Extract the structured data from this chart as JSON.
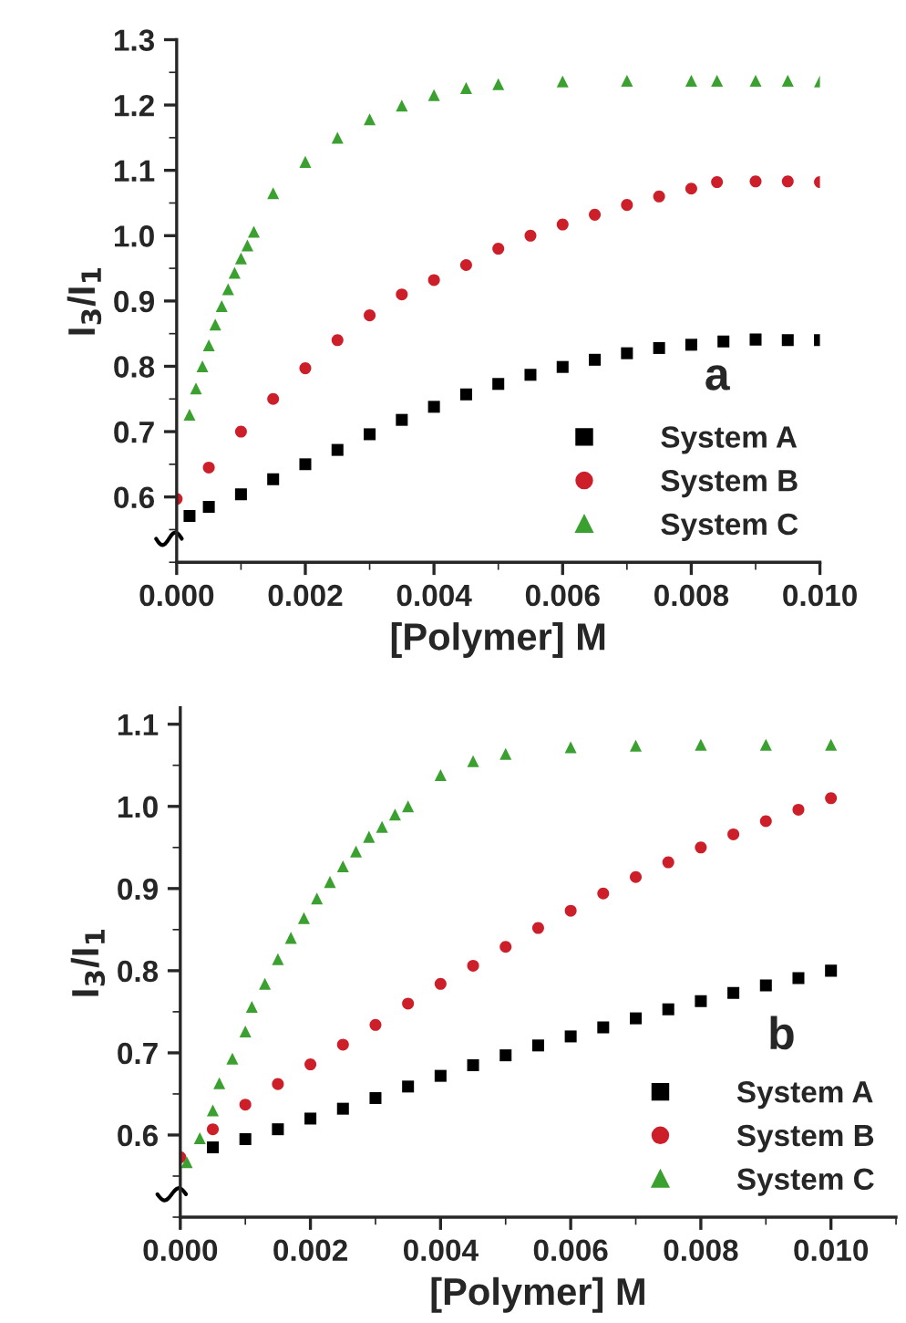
{
  "chart_data": [
    {
      "type": "scatter",
      "xlabel": "[Polymer] M",
      "ylabel": "I$_{3}$/I$_{1}$",
      "xlim": [
        0,
        0.01
      ],
      "ylim": [
        0.5,
        1.3
      ],
      "xticks": [
        {
          "value": 0,
          "label": "0.000"
        },
        {
          "value": 0.002,
          "label": "0.002"
        },
        {
          "value": 0.004,
          "label": "0.004"
        },
        {
          "value": 0.006,
          "label": "0.006"
        },
        {
          "value": 0.008,
          "label": "0.008"
        },
        {
          "value": 0.01,
          "label": "0.010"
        }
      ],
      "yticks": [
        0.6,
        0.7,
        0.8,
        0.9,
        {
          "value": 1,
          "label": "1.0"
        },
        1.1,
        1.2,
        1.3
      ],
      "legend": "bottom right",
      "grid": false,
      "annotations": [
        "a"
      ],
      "series": [
        {
          "name": "System A",
          "color": "#000000",
          "marker": "square",
          "x": [
            0.0002,
            0.0005,
            0.001,
            0.0015,
            0.002,
            0.0025,
            0.003,
            0.0035,
            0.004,
            0.0045,
            0.005,
            0.0055,
            0.006,
            0.0065,
            0.007,
            0.0075,
            0.008,
            0.0085,
            0.009,
            0.0095,
            0.01
          ],
          "values": [
            0.571,
            0.585,
            0.604,
            0.627,
            0.65,
            0.672,
            0.696,
            0.718,
            0.738,
            0.757,
            0.773,
            0.787,
            0.799,
            0.81,
            0.82,
            0.828,
            0.833,
            0.838,
            0.841,
            0.84,
            0.84
          ]
        },
        {
          "name": "System B",
          "color": "#cc1f2a",
          "marker": "circle",
          "x": [
            0,
            0.0005,
            0.001,
            0.0015,
            0.002,
            0.0025,
            0.003,
            0.0035,
            0.004,
            0.0045,
            0.005,
            0.0055,
            0.006,
            0.0065,
            0.007,
            0.0075,
            0.008,
            0.0084,
            0.009,
            0.0095,
            0.01
          ],
          "values": [
            0.597,
            0.645,
            0.7,
            0.75,
            0.797,
            0.84,
            0.878,
            0.91,
            0.932,
            0.955,
            0.98,
            1.0,
            1.017,
            1.032,
            1.047,
            1.06,
            1.072,
            1.082,
            1.083,
            1.083,
            1.082
          ]
        },
        {
          "name": "System C",
          "color": "#3aa02f",
          "marker": "triangle",
          "x": [
            0.0002,
            0.0003,
            0.0004,
            0.0005,
            0.0006,
            0.0007,
            0.0008,
            0.0009,
            0.001,
            0.0011,
            0.0012,
            0.0015,
            0.002,
            0.0025,
            0.003,
            0.0035,
            0.004,
            0.0045,
            0.005,
            0.006,
            0.007,
            0.008,
            0.0084,
            0.009,
            0.0095,
            0.01
          ],
          "values": [
            0.726,
            0.766,
            0.8,
            0.832,
            0.864,
            0.892,
            0.918,
            0.943,
            0.965,
            0.985,
            1.006,
            1.065,
            1.113,
            1.15,
            1.178,
            1.199,
            1.215,
            1.226,
            1.232,
            1.236,
            1.237,
            1.237,
            1.237,
            1.237,
            1.237,
            1.236
          ]
        }
      ]
    },
    {
      "type": "scatter",
      "xlabel": "[Polymer] M",
      "ylabel": "I$_{3}$/I$_{1}$",
      "xlim": [
        0,
        0.011
      ],
      "ylim": [
        0.5,
        1.12
      ],
      "xticks": [
        {
          "value": 0,
          "label": "0.000"
        },
        {
          "value": 0.002,
          "label": "0.002"
        },
        {
          "value": 0.004,
          "label": "0.004"
        },
        {
          "value": 0.006,
          "label": "0.006"
        },
        {
          "value": 0.008,
          "label": "0.008"
        },
        {
          "value": 0.01,
          "label": "0.010"
        }
      ],
      "yticks": [
        0.6,
        0.7,
        0.8,
        0.9,
        {
          "value": 1,
          "label": "1.0"
        },
        1.1
      ],
      "legend": "bottom right",
      "grid": false,
      "annotations": [
        "b"
      ],
      "series": [
        {
          "name": "System A",
          "color": "#000000",
          "marker": "square",
          "x": [
            0.0005,
            0.001,
            0.0015,
            0.002,
            0.0025,
            0.003,
            0.0035,
            0.004,
            0.0045,
            0.005,
            0.0055,
            0.006,
            0.0065,
            0.007,
            0.0075,
            0.008,
            0.0085,
            0.009,
            0.0095,
            0.01
          ],
          "values": [
            0.585,
            0.595,
            0.607,
            0.62,
            0.632,
            0.645,
            0.659,
            0.672,
            0.685,
            0.697,
            0.709,
            0.72,
            0.731,
            0.742,
            0.753,
            0.763,
            0.773,
            0.782,
            0.791,
            0.8
          ]
        },
        {
          "name": "System B",
          "color": "#cc1f2a",
          "marker": "circle",
          "x": [
            0,
            0.0005,
            0.001,
            0.0015,
            0.002,
            0.0025,
            0.003,
            0.0035,
            0.004,
            0.0045,
            0.005,
            0.0055,
            0.006,
            0.0065,
            0.007,
            0.0075,
            0.008,
            0.0085,
            0.009,
            0.0095,
            0.01
          ],
          "values": [
            0.573,
            0.607,
            0.637,
            0.662,
            0.686,
            0.71,
            0.734,
            0.76,
            0.784,
            0.806,
            0.829,
            0.852,
            0.873,
            0.894,
            0.914,
            0.932,
            0.95,
            0.966,
            0.982,
            0.996,
            1.01
          ]
        },
        {
          "name": "System C",
          "color": "#3aa02f",
          "marker": "triangle",
          "x": [
            0.0001,
            0.0003,
            0.0005,
            0.0006,
            0.0008,
            0.001,
            0.0011,
            0.0013,
            0.0015,
            0.0017,
            0.0019,
            0.0021,
            0.0023,
            0.0025,
            0.0027,
            0.0029,
            0.0031,
            0.0033,
            0.0035,
            0.004,
            0.0045,
            0.005,
            0.006,
            0.007,
            0.008,
            0.009,
            0.01
          ],
          "values": [
            0.567,
            0.596,
            0.63,
            0.663,
            0.693,
            0.726,
            0.756,
            0.784,
            0.814,
            0.84,
            0.864,
            0.888,
            0.908,
            0.927,
            0.945,
            0.963,
            0.975,
            0.99,
            1.0,
            1.038,
            1.055,
            1.064,
            1.072,
            1.074,
            1.075,
            1.075,
            1.075
          ]
        }
      ]
    }
  ]
}
